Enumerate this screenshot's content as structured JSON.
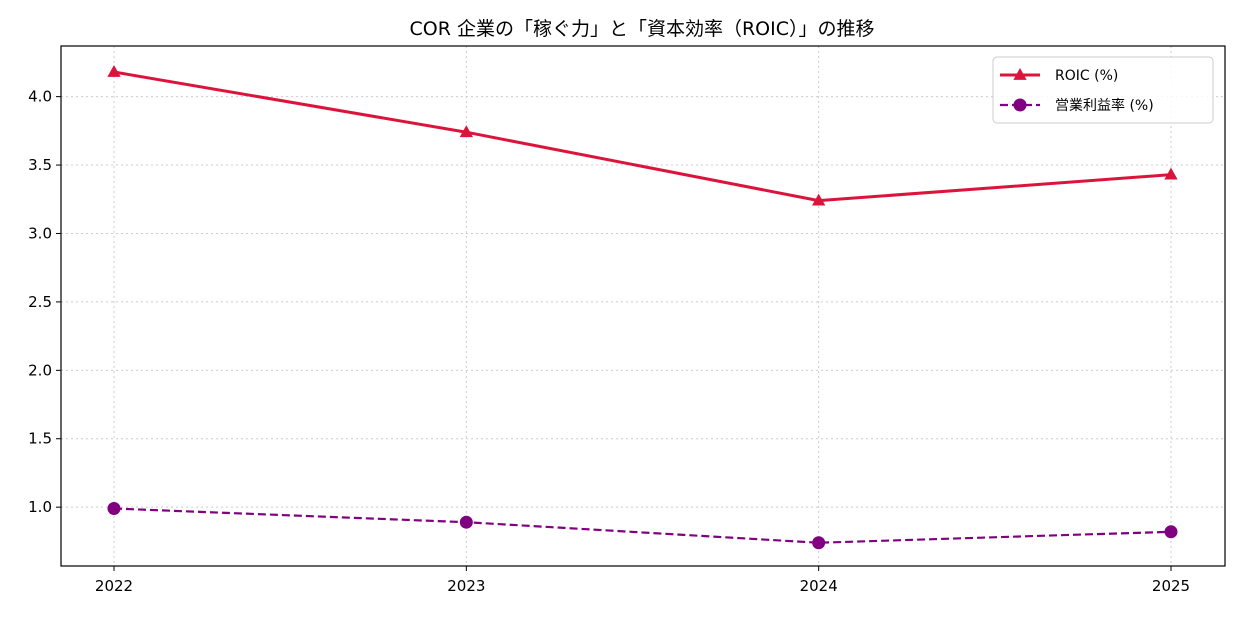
{
  "chart_data": {
    "type": "line",
    "title": "COR 企業の「稼ぐ力」と「資本効率（ROIC）」の推移",
    "xlabel": "",
    "ylabel": "",
    "categories": [
      "2022",
      "2023",
      "2024",
      "2025"
    ],
    "ylim": [
      0.57,
      4.37
    ],
    "yticks": [
      "1.0",
      "1.5",
      "2.0",
      "2.5",
      "3.0",
      "3.5",
      "4.0"
    ],
    "grid": true,
    "legend_position": "top-right",
    "series": [
      {
        "name": "ROIC (%)",
        "values": [
          4.18,
          3.74,
          3.24,
          3.43
        ],
        "color": "#dc143c",
        "marker": "triangle",
        "line_style": "solid"
      },
      {
        "name": "営業利益率 (%)",
        "values": [
          0.99,
          0.89,
          0.74,
          0.82
        ],
        "color": "#800080",
        "marker": "circle",
        "line_style": "dashed"
      }
    ]
  }
}
